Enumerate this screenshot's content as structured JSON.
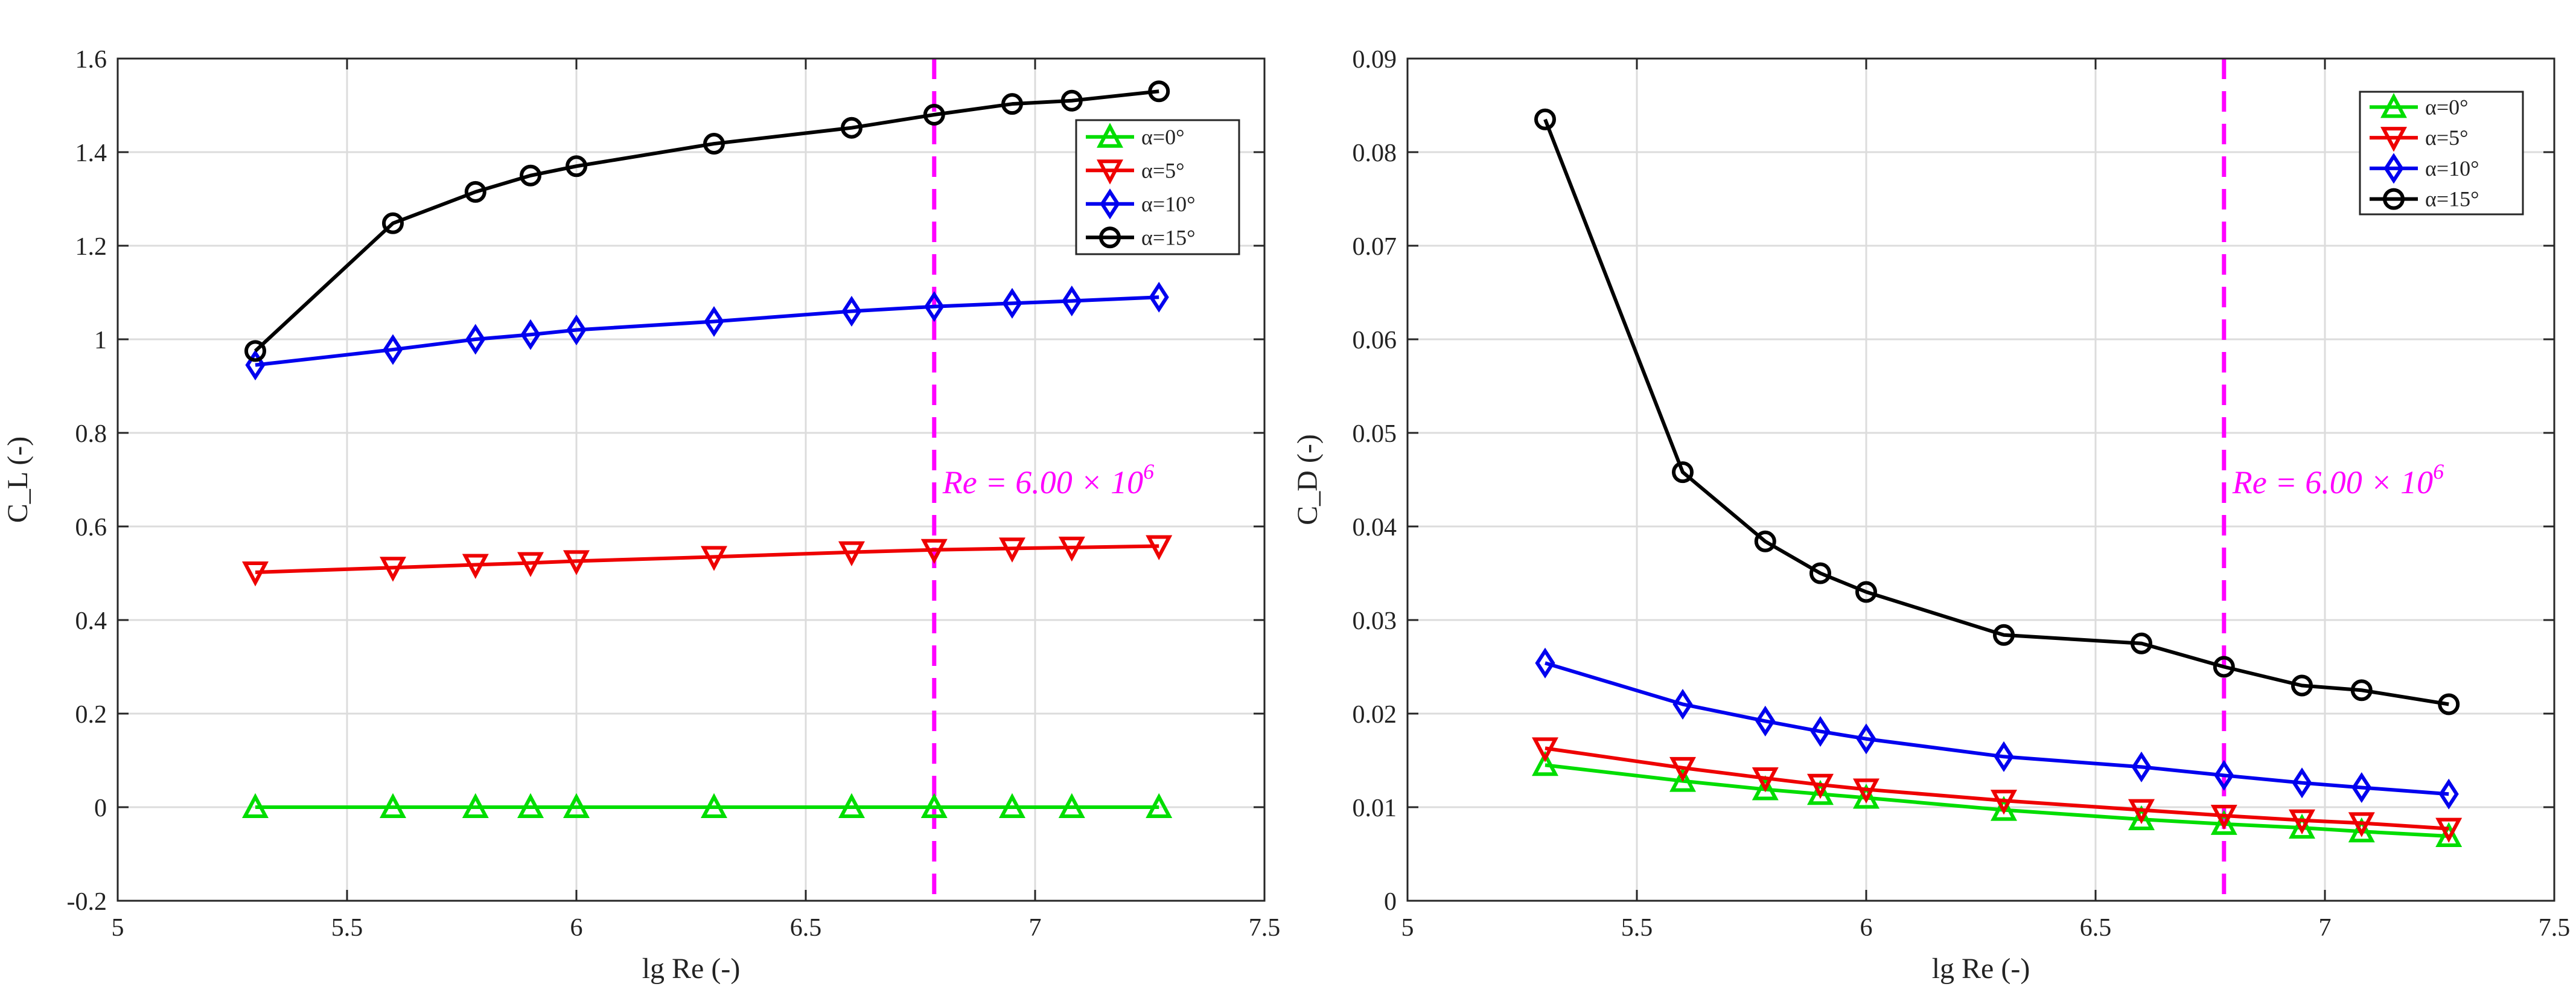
{
  "chart_data": [
    {
      "type": "line",
      "panel": "left",
      "title": "",
      "xlabel": "lg Re (-)",
      "ylabel": "C_L (-)",
      "xlim": [
        5,
        7.5
      ],
      "ylim": [
        -0.2,
        1.6
      ],
      "xticks": [
        5,
        5.5,
        6,
        6.5,
        7,
        7.5
      ],
      "xtick_labels": [
        "5",
        "5.5",
        "6",
        "6.5",
        "7",
        "7.5"
      ],
      "yticks": [
        -0.2,
        0,
        0.2,
        0.4,
        0.6,
        0.8,
        1,
        1.2,
        1.4,
        1.6
      ],
      "ytick_labels": [
        "-0.2",
        "0",
        "0.2",
        "0.4",
        "0.6",
        "0.8",
        "1",
        "1.2",
        "1.4",
        "1.6"
      ],
      "grid": true,
      "legend_position": "top-right",
      "x": [
        5.3,
        5.6,
        5.78,
        5.9,
        6.0,
        6.3,
        6.6,
        6.78,
        6.95,
        7.08,
        7.27
      ],
      "series": [
        {
          "name": "α=0°",
          "color": "#00dd00",
          "marker": "triangle-up",
          "values": [
            0,
            0,
            0,
            0,
            0,
            0,
            0,
            0,
            0,
            0,
            0
          ]
        },
        {
          "name": "α=5°",
          "color": "#ee0000",
          "marker": "triangle-down",
          "values": [
            0.502,
            0.512,
            0.518,
            0.522,
            0.526,
            0.535,
            0.545,
            0.55,
            0.553,
            0.555,
            0.558
          ]
        },
        {
          "name": "α=10°",
          "color": "#0000ee",
          "marker": "diamond",
          "values": [
            0.945,
            0.978,
            1.0,
            1.01,
            1.02,
            1.038,
            1.06,
            1.07,
            1.077,
            1.082,
            1.09
          ]
        },
        {
          "name": "α=15°",
          "color": "#000000",
          "marker": "circle",
          "values": [
            0.975,
            1.248,
            1.315,
            1.35,
            1.37,
            1.418,
            1.452,
            1.48,
            1.503,
            1.51,
            1.53
          ]
        }
      ],
      "vline": {
        "x": 6.78,
        "color": "#ff00ff",
        "label": "Re = 6.00 × 10^6",
        "label_main": "Re = 6.00 × 10",
        "label_exp": "6"
      }
    },
    {
      "type": "line",
      "panel": "right",
      "title": "",
      "xlabel": "lg Re (-)",
      "ylabel": "C_D (-)",
      "xlim": [
        5,
        7.5
      ],
      "ylim": [
        0,
        0.09
      ],
      "xticks": [
        5,
        5.5,
        6,
        6.5,
        7,
        7.5
      ],
      "xtick_labels": [
        "5",
        "5.5",
        "6",
        "6.5",
        "7",
        "7.5"
      ],
      "yticks": [
        0,
        0.01,
        0.02,
        0.03,
        0.04,
        0.05,
        0.06,
        0.07,
        0.08,
        0.09
      ],
      "ytick_labels": [
        "0",
        "0.01",
        "0.02",
        "0.03",
        "0.04",
        "0.05",
        "0.06",
        "0.07",
        "0.08",
        "0.09"
      ],
      "grid": true,
      "legend_position": "top-right",
      "x": [
        5.3,
        5.6,
        5.78,
        5.9,
        6.0,
        6.3,
        6.6,
        6.78,
        6.95,
        7.08,
        7.27
      ],
      "series": [
        {
          "name": "α=0°",
          "color": "#00dd00",
          "marker": "triangle-up",
          "values": [
            0.0145,
            0.0128,
            0.0119,
            0.0114,
            0.011,
            0.0097,
            0.0087,
            0.0082,
            0.0078,
            0.0074,
            0.0069
          ]
        },
        {
          "name": "α=5°",
          "color": "#ee0000",
          "marker": "triangle-down",
          "values": [
            0.0163,
            0.0142,
            0.0131,
            0.0124,
            0.0119,
            0.0107,
            0.0097,
            0.0091,
            0.0086,
            0.0083,
            0.0077
          ]
        },
        {
          "name": "α=10°",
          "color": "#0000ee",
          "marker": "diamond",
          "values": [
            0.0254,
            0.021,
            0.0192,
            0.0181,
            0.0173,
            0.0154,
            0.0143,
            0.0134,
            0.0126,
            0.0121,
            0.0114
          ]
        },
        {
          "name": "α=15°",
          "color": "#000000",
          "marker": "circle",
          "values": [
            0.0835,
            0.0458,
            0.0384,
            0.035,
            0.033,
            0.0284,
            0.0275,
            0.025,
            0.023,
            0.0225,
            0.021
          ]
        }
      ],
      "vline": {
        "x": 6.78,
        "color": "#ff00ff",
        "label": "Re = 6.00 × 10^6",
        "label_main": "Re = 6.00 × 10",
        "label_exp": "6"
      }
    }
  ]
}
